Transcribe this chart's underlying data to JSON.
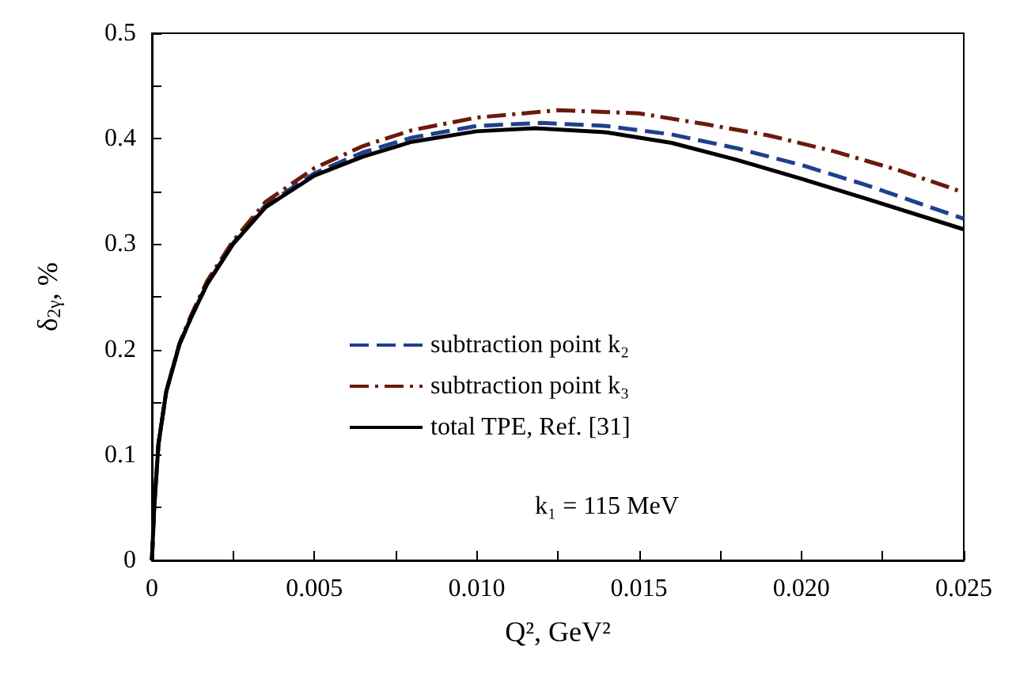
{
  "chart_data": {
    "type": "line",
    "xlabel": "Q², GeV²",
    "ylabel": "δ$_{2γ}$, %",
    "xlim": [
      0,
      0.025
    ],
    "ylim": [
      0,
      0.5
    ],
    "xticks": [
      0,
      {
        "value": 0.0025,
        "label": null
      },
      0.005,
      {
        "value": 0.0075,
        "label": null
      },
      {
        "value": 0.01,
        "label": "0.010"
      },
      {
        "value": 0.0125,
        "label": null
      },
      {
        "value": 0.015,
        "label": "0.015"
      },
      {
        "value": 0.0175,
        "label": null
      },
      {
        "value": 0.02,
        "label": "0.020"
      },
      {
        "value": 0.0225,
        "label": null
      },
      0.025
    ],
    "yticks": [
      0,
      {
        "value": 0.05,
        "label": null
      },
      0.1,
      {
        "value": 0.15,
        "label": null
      },
      0.2,
      {
        "value": 0.25,
        "label": null
      },
      0.3,
      {
        "value": 0.35,
        "label": null
      },
      0.4,
      {
        "value": 0.45,
        "label": null
      },
      0.5
    ],
    "grid": false,
    "legend": "center",
    "marker": "none",
    "annotations": [
      "k₁ = 115 MeV"
    ],
    "series": [
      {
        "name": "subtraction point k₂",
        "color": "#1f3f8f",
        "line_style": "dashed",
        "x": [
          0,
          7e-05,
          0.0002,
          0.00044,
          0.00085,
          0.0012,
          0.0017,
          0.0025,
          0.0035,
          0.005,
          0.0065,
          0.008,
          0.01,
          0.012,
          0.014,
          0.016,
          0.018,
          0.02,
          0.022,
          0.025
        ],
        "values": [
          0,
          0.05,
          0.11,
          0.16,
          0.205,
          0.23,
          0.262,
          0.301,
          0.337,
          0.367,
          0.387,
          0.401,
          0.412,
          0.415,
          0.412,
          0.404,
          0.391,
          0.375,
          0.356,
          0.324
        ]
      },
      {
        "name": "subtraction point k₃",
        "color": "#6b1a0c",
        "line_style": "dashdot",
        "x": [
          0,
          7e-05,
          0.0002,
          0.00044,
          0.00085,
          0.0012,
          0.0017,
          0.0025,
          0.0035,
          0.005,
          0.0065,
          0.008,
          0.01,
          0.0125,
          0.015,
          0.017,
          0.019,
          0.021,
          0.023,
          0.025
        ],
        "values": [
          0,
          0.05,
          0.11,
          0.16,
          0.206,
          0.232,
          0.265,
          0.303,
          0.34,
          0.372,
          0.393,
          0.408,
          0.42,
          0.427,
          0.424,
          0.414,
          0.403,
          0.388,
          0.37,
          0.349
        ]
      },
      {
        "name": "total TPE, Ref. [31]",
        "color": "#000000",
        "line_style": "solid",
        "x": [
          0,
          7e-05,
          0.0002,
          0.00044,
          0.00085,
          0.0012,
          0.0017,
          0.0025,
          0.0035,
          0.005,
          0.0065,
          0.008,
          0.01,
          0.0118,
          0.014,
          0.016,
          0.018,
          0.02,
          0.022,
          0.025
        ],
        "values": [
          0,
          0.05,
          0.11,
          0.16,
          0.205,
          0.23,
          0.262,
          0.3,
          0.335,
          0.365,
          0.383,
          0.397,
          0.407,
          0.41,
          0.406,
          0.396,
          0.38,
          0.362,
          0.343,
          0.314
        ]
      }
    ]
  }
}
